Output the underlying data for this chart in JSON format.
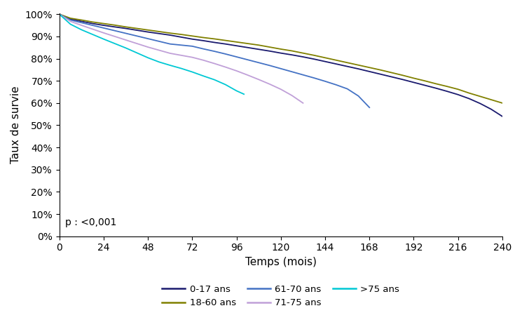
{
  "title": "",
  "xlabel": "Temps (mois)",
  "ylabel": "Taux de survie",
  "xlim": [
    0,
    240
  ],
  "ylim": [
    0.0,
    1.005
  ],
  "xticks": [
    0,
    24,
    48,
    72,
    96,
    120,
    144,
    168,
    192,
    216,
    240
  ],
  "yticks": [
    0.0,
    0.1,
    0.2,
    0.3,
    0.4,
    0.5,
    0.6,
    0.7,
    0.8,
    0.9,
    1.0
  ],
  "pvalue_text": "p : <0,001",
  "curves": [
    {
      "label": "0-17 ans",
      "color": "#1a1a6e",
      "linewidth": 1.3,
      "x": [
        0,
        6,
        12,
        18,
        24,
        30,
        36,
        42,
        48,
        54,
        60,
        66,
        72,
        78,
        84,
        90,
        96,
        102,
        108,
        114,
        120,
        126,
        132,
        138,
        144,
        150,
        156,
        162,
        168,
        174,
        180,
        186,
        192,
        198,
        204,
        210,
        216,
        222,
        228,
        234,
        240
      ],
      "y": [
        1.0,
        0.978,
        0.968,
        0.958,
        0.95,
        0.943,
        0.936,
        0.928,
        0.92,
        0.913,
        0.906,
        0.897,
        0.888,
        0.881,
        0.873,
        0.866,
        0.858,
        0.85,
        0.842,
        0.834,
        0.825,
        0.817,
        0.808,
        0.798,
        0.787,
        0.776,
        0.765,
        0.754,
        0.742,
        0.73,
        0.718,
        0.706,
        0.693,
        0.68,
        0.667,
        0.653,
        0.638,
        0.62,
        0.598,
        0.572,
        0.54
      ]
    },
    {
      "label": "18-60 ans",
      "color": "#808000",
      "linewidth": 1.3,
      "x": [
        0,
        6,
        12,
        18,
        24,
        30,
        36,
        42,
        48,
        54,
        60,
        66,
        72,
        78,
        84,
        90,
        96,
        102,
        108,
        114,
        120,
        126,
        132,
        138,
        144,
        150,
        156,
        162,
        168,
        174,
        180,
        186,
        192,
        198,
        204,
        210,
        216,
        222,
        228,
        234,
        240
      ],
      "y": [
        1.0,
        0.982,
        0.974,
        0.965,
        0.958,
        0.951,
        0.943,
        0.936,
        0.929,
        0.922,
        0.915,
        0.909,
        0.902,
        0.895,
        0.889,
        0.882,
        0.875,
        0.868,
        0.861,
        0.852,
        0.843,
        0.835,
        0.825,
        0.815,
        0.804,
        0.793,
        0.782,
        0.771,
        0.76,
        0.749,
        0.737,
        0.725,
        0.712,
        0.7,
        0.687,
        0.675,
        0.662,
        0.645,
        0.63,
        0.615,
        0.6
      ]
    },
    {
      "label": "61-70 ans",
      "color": "#4472c4",
      "linewidth": 1.3,
      "x": [
        0,
        6,
        12,
        18,
        24,
        30,
        36,
        42,
        48,
        54,
        60,
        66,
        72,
        78,
        84,
        90,
        96,
        102,
        108,
        114,
        120,
        126,
        132,
        138,
        144,
        150,
        156,
        162,
        168
      ],
      "y": [
        1.0,
        0.974,
        0.962,
        0.95,
        0.938,
        0.926,
        0.914,
        0.902,
        0.89,
        0.878,
        0.866,
        0.861,
        0.856,
        0.844,
        0.833,
        0.821,
        0.808,
        0.795,
        0.782,
        0.769,
        0.755,
        0.741,
        0.727,
        0.713,
        0.698,
        0.682,
        0.664,
        0.632,
        0.58
      ]
    },
    {
      "label": "71-75 ans",
      "color": "#c0a0d8",
      "linewidth": 1.3,
      "x": [
        0,
        6,
        12,
        18,
        24,
        30,
        36,
        42,
        48,
        54,
        60,
        66,
        72,
        78,
        84,
        90,
        96,
        102,
        108,
        114,
        120,
        126,
        132
      ],
      "y": [
        1.0,
        0.968,
        0.95,
        0.933,
        0.916,
        0.9,
        0.884,
        0.868,
        0.852,
        0.838,
        0.824,
        0.815,
        0.806,
        0.793,
        0.778,
        0.762,
        0.745,
        0.726,
        0.706,
        0.685,
        0.662,
        0.634,
        0.6
      ]
    },
    {
      "label": ">75 ans",
      "color": "#00c8d4",
      "linewidth": 1.3,
      "x": [
        0,
        6,
        12,
        18,
        24,
        30,
        36,
        42,
        48,
        54,
        60,
        66,
        72,
        78,
        84,
        90,
        96,
        100
      ],
      "y": [
        1.0,
        0.955,
        0.93,
        0.909,
        0.888,
        0.868,
        0.848,
        0.826,
        0.804,
        0.785,
        0.77,
        0.756,
        0.74,
        0.722,
        0.705,
        0.683,
        0.655,
        0.64
      ]
    }
  ],
  "legend_order": [
    "0-17 ans",
    "18-60 ans",
    "61-70 ans",
    "71-75 ans",
    ">75 ans"
  ],
  "legend_colors": [
    "#1a1a6e",
    "#808000",
    "#4472c4",
    "#c0a0d8",
    "#00c8d4"
  ],
  "background_color": "#ffffff",
  "fontsize_axes": 11,
  "fontsize_ticks": 10,
  "fontsize_legend": 9.5,
  "fontsize_pvalue": 10
}
